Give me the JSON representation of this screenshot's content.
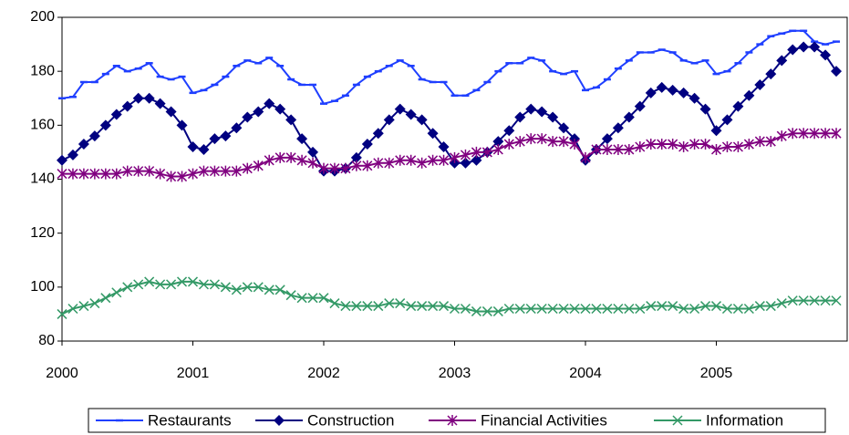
{
  "chart_data": {
    "type": "line",
    "categories": [
      "2000",
      null,
      null,
      null,
      null,
      null,
      null,
      null,
      null,
      null,
      null,
      null,
      "2001",
      null,
      null,
      null,
      null,
      null,
      null,
      null,
      null,
      null,
      null,
      null,
      "2002",
      null,
      null,
      null,
      null,
      null,
      null,
      null,
      null,
      null,
      null,
      null,
      "2003",
      null,
      null,
      null,
      null,
      null,
      null,
      null,
      null,
      null,
      null,
      null,
      "2004",
      null,
      null,
      null,
      null,
      null,
      null,
      null,
      null,
      null,
      null,
      null,
      "2005",
      null,
      null,
      null,
      null,
      null,
      null,
      null,
      null,
      null,
      null,
      null
    ],
    "ylim": [
      80,
      200
    ],
    "yticks": [
      80,
      100,
      120,
      140,
      160,
      180,
      200
    ],
    "grid": false,
    "legend": "bottom",
    "series": [
      {
        "name": "Restaurants",
        "color": "#1f3fff",
        "marker": "dash",
        "values": [
          170,
          170.5,
          176,
          176,
          179,
          182,
          180,
          181,
          183,
          178,
          177,
          178,
          172,
          173,
          175,
          178,
          182,
          184,
          183,
          185,
          182,
          177,
          175,
          175,
          168,
          169,
          171,
          175,
          178,
          180,
          182,
          184,
          182,
          177,
          176,
          176,
          171,
          171,
          173,
          176,
          180,
          183,
          183,
          185,
          184,
          180,
          179,
          180,
          173,
          174,
          177,
          181,
          184,
          187,
          187,
          188,
          187,
          184,
          183,
          184,
          179,
          180,
          183,
          187,
          190,
          193,
          194,
          195,
          195,
          191,
          190,
          191
        ]
      },
      {
        "name": "Construction",
        "color": "#000080",
        "marker": "diamond",
        "values": [
          147,
          149,
          153,
          156,
          160,
          164,
          167,
          170,
          170,
          168,
          165,
          160,
          152,
          151,
          155,
          156,
          159,
          163,
          165,
          168,
          166,
          162,
          155,
          150,
          143,
          143,
          144,
          148,
          153,
          157,
          162,
          166,
          164,
          162,
          157,
          152,
          146,
          146,
          147,
          150,
          154,
          158,
          163,
          166,
          165,
          163,
          159,
          155,
          147,
          151,
          155,
          159,
          163,
          167,
          172,
          174,
          173,
          172,
          170,
          166,
          158,
          162,
          167,
          171,
          175,
          179,
          184,
          188,
          189,
          189,
          186,
          180
        ]
      },
      {
        "name": "Financial Activities",
        "color": "#800080",
        "marker": "star",
        "values": [
          142,
          142,
          142,
          142,
          142,
          142,
          143,
          143,
          143,
          142,
          141,
          141,
          142,
          143,
          143,
          143,
          143,
          144,
          145,
          147,
          148,
          148,
          147,
          146,
          144,
          144,
          144,
          145,
          145,
          146,
          146,
          147,
          147,
          146,
          147,
          147,
          148,
          149,
          150,
          150,
          151,
          153,
          154,
          155,
          155,
          154,
          154,
          153,
          148,
          151,
          151,
          151,
          151,
          152,
          153,
          153,
          153,
          152,
          153,
          153,
          151,
          152,
          152,
          153,
          154,
          154,
          156,
          157,
          157,
          157,
          157,
          157
        ]
      },
      {
        "name": "Information",
        "color": "#339966",
        "marker": "x",
        "values": [
          90,
          92,
          93,
          94,
          96,
          98,
          100,
          101,
          102,
          101,
          101,
          102,
          102,
          101,
          101,
          100,
          99,
          100,
          100,
          99,
          99,
          97,
          96,
          96,
          96,
          94,
          93,
          93,
          93,
          93,
          94,
          94,
          93,
          93,
          93,
          93,
          92,
          92,
          91,
          91,
          91,
          92,
          92,
          92,
          92,
          92,
          92,
          92,
          92,
          92,
          92,
          92,
          92,
          92,
          93,
          93,
          93,
          92,
          92,
          93,
          93,
          92,
          92,
          92,
          93,
          93,
          94,
          95,
          95,
          95,
          95,
          95
        ]
      }
    ]
  }
}
